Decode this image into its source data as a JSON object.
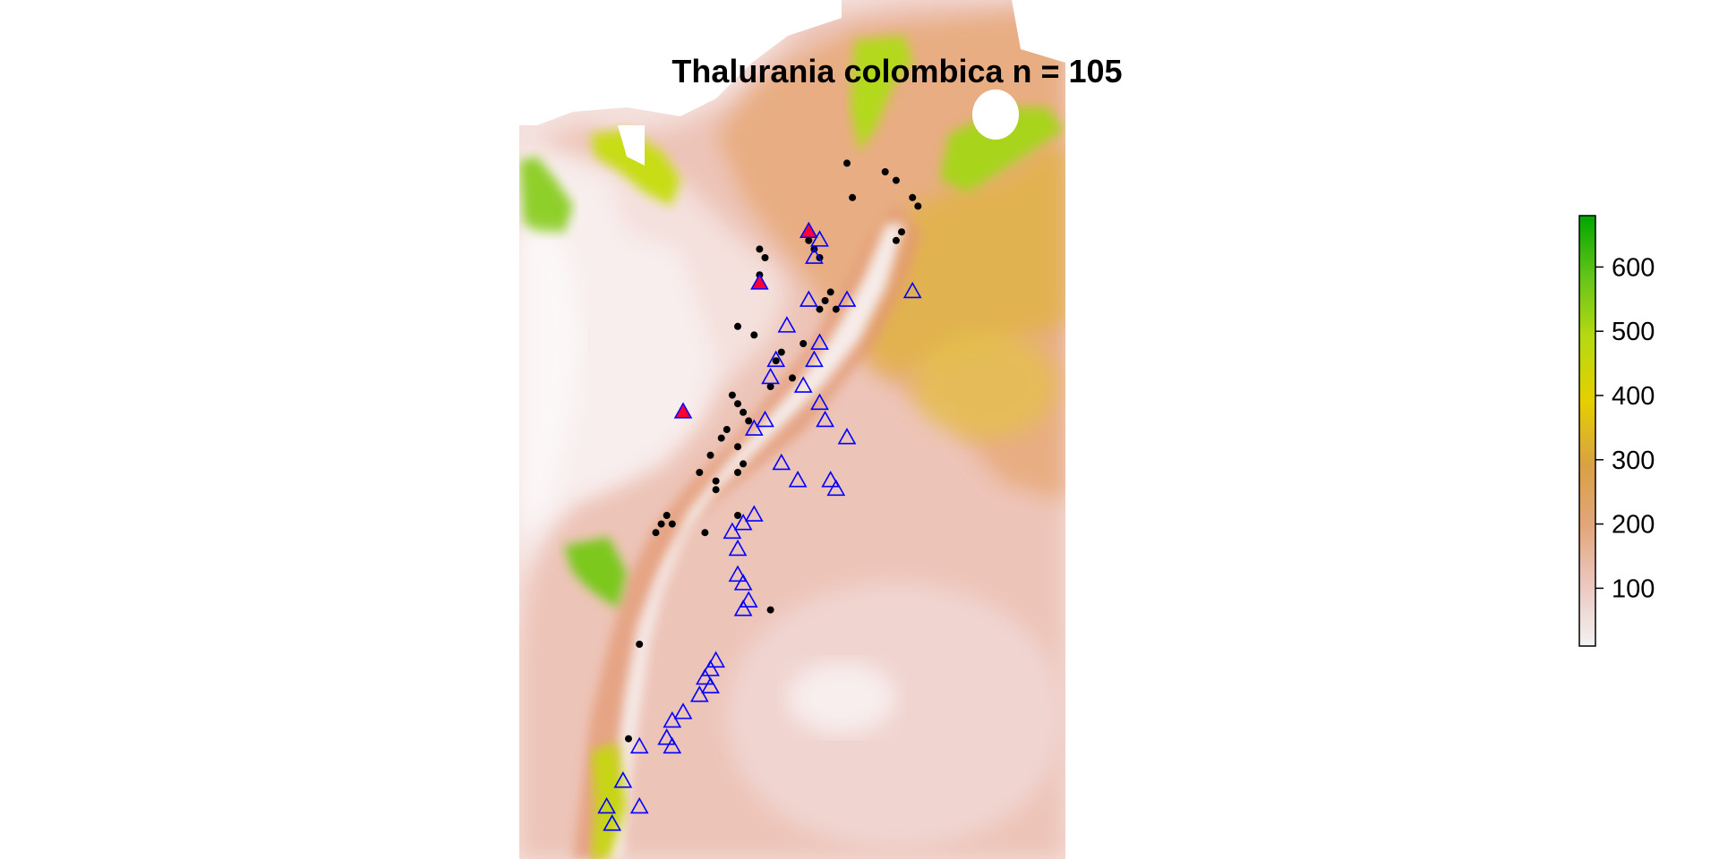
{
  "title": "Thalurania colombica n = 105",
  "legend": {
    "ticks": [
      "100",
      "200",
      "300",
      "400",
      "500",
      "600"
    ],
    "range": [
      10,
      680
    ],
    "colors": [
      "#f2f2f2",
      "#ecc8c0",
      "#e2a67c",
      "#d9a143",
      "#e4d000",
      "#b5d912",
      "#63c419",
      "#00a600"
    ]
  },
  "chart_data": {
    "type": "scatter",
    "map": "raster map with occurrence points",
    "color_scale": {
      "min": 10,
      "max": 680,
      "ticks": [
        100,
        200,
        300,
        400,
        500,
        600
      ]
    },
    "series": [
      {
        "marker": "filled black circle",
        "color": "#000000",
        "points": [
          [
            0.67,
            0.2
          ],
          [
            0.61,
            0.23
          ],
          [
            0.53,
            0.28
          ],
          [
            0.54,
            0.29
          ],
          [
            0.55,
            0.3
          ],
          [
            0.57,
            0.34
          ],
          [
            0.56,
            0.35
          ],
          [
            0.55,
            0.36
          ],
          [
            0.58,
            0.36
          ],
          [
            0.52,
            0.4
          ],
          [
            0.43,
            0.39
          ],
          [
            0.47,
            0.42
          ],
          [
            0.48,
            0.41
          ],
          [
            0.5,
            0.44
          ],
          [
            0.46,
            0.45
          ],
          [
            0.4,
            0.38
          ],
          [
            0.39,
            0.46
          ],
          [
            0.4,
            0.47
          ],
          [
            0.41,
            0.48
          ],
          [
            0.42,
            0.49
          ],
          [
            0.38,
            0.5
          ],
          [
            0.37,
            0.51
          ],
          [
            0.4,
            0.52
          ],
          [
            0.41,
            0.54
          ],
          [
            0.4,
            0.55
          ],
          [
            0.33,
            0.55
          ],
          [
            0.35,
            0.53
          ],
          [
            0.36,
            0.56
          ],
          [
            0.27,
            0.6
          ],
          [
            0.26,
            0.61
          ],
          [
            0.34,
            0.62
          ],
          [
            0.4,
            0.6
          ],
          [
            0.36,
            0.57
          ],
          [
            0.28,
            0.61
          ],
          [
            0.25,
            0.62
          ],
          [
            0.46,
            0.71
          ],
          [
            0.22,
            0.75
          ],
          [
            0.2,
            0.86
          ],
          [
            0.44,
            0.29
          ],
          [
            0.45,
            0.3
          ],
          [
            0.44,
            0.32
          ],
          [
            0.6,
            0.19
          ],
          [
            0.69,
            0.21
          ],
          [
            0.72,
            0.23
          ],
          [
            0.73,
            0.24
          ],
          [
            0.7,
            0.27
          ],
          [
            0.69,
            0.28
          ]
        ]
      },
      {
        "marker": "open blue triangle",
        "color": "#0000ff",
        "points": [
          [
            0.55,
            0.28
          ],
          [
            0.49,
            0.38
          ],
          [
            0.47,
            0.42
          ],
          [
            0.46,
            0.44
          ],
          [
            0.54,
            0.42
          ],
          [
            0.52,
            0.45
          ],
          [
            0.45,
            0.49
          ],
          [
            0.43,
            0.5
          ],
          [
            0.48,
            0.54
          ],
          [
            0.43,
            0.6
          ],
          [
            0.41,
            0.61
          ],
          [
            0.39,
            0.62
          ],
          [
            0.4,
            0.64
          ],
          [
            0.55,
            0.47
          ],
          [
            0.56,
            0.49
          ],
          [
            0.6,
            0.51
          ],
          [
            0.57,
            0.56
          ],
          [
            0.58,
            0.57
          ],
          [
            0.51,
            0.56
          ],
          [
            0.4,
            0.67
          ],
          [
            0.41,
            0.68
          ],
          [
            0.42,
            0.7
          ],
          [
            0.41,
            0.71
          ],
          [
            0.36,
            0.77
          ],
          [
            0.35,
            0.78
          ],
          [
            0.34,
            0.79
          ],
          [
            0.35,
            0.8
          ],
          [
            0.33,
            0.81
          ],
          [
            0.3,
            0.83
          ],
          [
            0.28,
            0.84
          ],
          [
            0.27,
            0.86
          ],
          [
            0.28,
            0.87
          ],
          [
            0.22,
            0.87
          ],
          [
            0.19,
            0.91
          ],
          [
            0.16,
            0.94
          ],
          [
            0.22,
            0.94
          ],
          [
            0.17,
            0.96
          ],
          [
            0.54,
            0.3
          ],
          [
            0.53,
            0.35
          ],
          [
            0.6,
            0.35
          ],
          [
            0.72,
            0.34
          ],
          [
            0.55,
            0.4
          ]
        ]
      },
      {
        "marker": "filled red triangle",
        "color": "#ff0033",
        "points": [
          [
            0.53,
            0.27
          ],
          [
            0.44,
            0.33
          ],
          [
            0.3,
            0.48
          ]
        ]
      }
    ]
  }
}
